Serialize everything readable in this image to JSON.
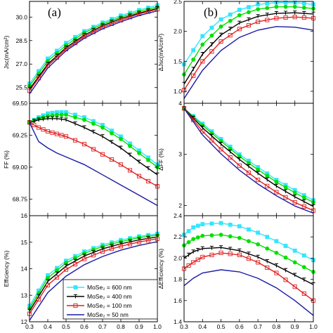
{
  "figure": {
    "left_tag": "(a)",
    "right_tag": "(b)"
  },
  "legend": {
    "entries": [
      {
        "label": "MoSe₂ = 600 nm",
        "color": "#33e6ff",
        "marker": "square-filled"
      },
      {
        "label": "MoSe₂ = 400 nm",
        "color": "#00e000",
        "marker": "circle-filled"
      },
      {
        "label": "MoSe₂ = 100 nm",
        "color": "#000000",
        "marker": "triangle-down"
      },
      {
        "label": "MoSe₂ = 50 nm",
        "color": "#e02020",
        "marker": "square-open"
      },
      {
        "label": "",
        "color": "#1a1aa6",
        "marker": "none"
      }
    ],
    "rows": [
      "MoSe₂ = 600 nm",
      "MoSe₂ = 400 nm",
      "MoSe₂ = 100 nm",
      "MoSe₂ = 50 nm"
    ]
  },
  "chart_data": [
    {
      "id": "jsc",
      "type": "line",
      "ylabel": "Jsc(mA/cm²)",
      "xlim": [
        0.3,
        1.0
      ],
      "ylim": [
        24.5,
        31.0
      ],
      "yticks": [
        25.5,
        27.0,
        28.5,
        30.0
      ],
      "ytick_labels": [
        "25.5",
        "27.0",
        "28.5",
        "30.0"
      ],
      "x": [
        0.3,
        0.4,
        0.5,
        0.6,
        0.7,
        0.8,
        0.9,
        1.0
      ],
      "series": [
        {
          "color": "#33e6ff",
          "marker": "square-filled",
          "values": [
            25.75,
            27.35,
            28.35,
            29.1,
            29.65,
            30.1,
            30.45,
            30.75
          ]
        },
        {
          "color": "#00e000",
          "marker": "circle-filled",
          "values": [
            25.6,
            27.2,
            28.2,
            29.0,
            29.55,
            30.0,
            30.35,
            30.65
          ]
        },
        {
          "color": "#000000",
          "marker": "triangle-down",
          "values": [
            25.4,
            27.0,
            28.05,
            28.85,
            29.45,
            29.9,
            30.25,
            30.55
          ]
        },
        {
          "color": "#e02020",
          "marker": "square-open",
          "values": [
            25.3,
            26.9,
            27.95,
            28.75,
            29.35,
            29.8,
            30.2,
            30.5
          ]
        },
        {
          "color": "#1a1aa6",
          "marker": "none",
          "values": [
            25.1,
            26.75,
            27.85,
            28.65,
            29.25,
            29.7,
            30.1,
            30.4
          ]
        }
      ]
    },
    {
      "id": "djsc",
      "type": "line",
      "ylabel": "ΔJsc(mA/cm²)",
      "xlim": [
        0.3,
        1.0
      ],
      "ylim": [
        0.8,
        2.5
      ],
      "yticks": [
        1.0,
        1.5,
        2.0,
        2.5
      ],
      "ytick_labels": [
        "1.0",
        "1.5",
        "2.0",
        "2.5"
      ],
      "x": [
        0.3,
        0.4,
        0.5,
        0.6,
        0.7,
        0.8,
        0.9,
        1.0
      ],
      "series": [
        {
          "color": "#33e6ff",
          "marker": "square-filled",
          "values": [
            1.45,
            1.92,
            2.2,
            2.36,
            2.45,
            2.48,
            2.48,
            2.45
          ]
        },
        {
          "color": "#00e000",
          "marker": "circle-filled",
          "values": [
            1.28,
            1.78,
            2.08,
            2.27,
            2.37,
            2.41,
            2.41,
            2.38
          ]
        },
        {
          "color": "#000000",
          "marker": "triangle-down",
          "values": [
            1.12,
            1.62,
            1.94,
            2.14,
            2.25,
            2.3,
            2.31,
            2.29
          ]
        },
        {
          "color": "#e02020",
          "marker": "square-open",
          "values": [
            1.02,
            1.5,
            1.83,
            2.04,
            2.16,
            2.22,
            2.24,
            2.22
          ]
        },
        {
          "color": "#1a1aa6",
          "marker": "none",
          "values": [
            0.88,
            1.35,
            1.68,
            1.9,
            2.02,
            2.08,
            2.07,
            2.02
          ]
        }
      ]
    },
    {
      "id": "ff",
      "type": "line",
      "ylabel": "FF (%)",
      "xlim": [
        0.3,
        1.0
      ],
      "ylim": [
        68.62,
        69.5
      ],
      "yticks": [
        68.75,
        69.0,
        69.25,
        69.5
      ],
      "ytick_labels": [
        "68.75",
        "69.00",
        "69.25",
        "69.50"
      ],
      "x": [
        0.3,
        0.35,
        0.4,
        0.45,
        0.5,
        0.6,
        0.7,
        0.8,
        0.9,
        1.0
      ],
      "series": [
        {
          "color": "#33e6ff",
          "marker": "square-filled",
          "values": [
            69.35,
            69.39,
            69.42,
            69.43,
            69.43,
            69.39,
            69.33,
            69.24,
            69.13,
            69.02
          ]
        },
        {
          "color": "#00e000",
          "marker": "circle-filled",
          "values": [
            69.35,
            69.38,
            69.4,
            69.41,
            69.41,
            69.37,
            69.31,
            69.22,
            69.11,
            69.0
          ]
        },
        {
          "color": "#000000",
          "marker": "triangle-down",
          "values": [
            69.35,
            69.37,
            69.38,
            69.38,
            69.37,
            69.31,
            69.24,
            69.15,
            69.04,
            68.94
          ]
        },
        {
          "color": "#e02020",
          "marker": "square-open",
          "values": [
            69.35,
            69.31,
            69.28,
            69.26,
            69.24,
            69.18,
            69.1,
            69.02,
            68.93,
            68.85
          ]
        },
        {
          "color": "#1a1aa6",
          "marker": "none",
          "values": [
            69.35,
            69.2,
            69.15,
            69.11,
            69.08,
            69.02,
            68.94,
            68.86,
            68.78,
            68.7
          ]
        }
      ]
    },
    {
      "id": "dff",
      "type": "line",
      "ylabel": "ΔFF (%)",
      "xlim": [
        0.3,
        1.0
      ],
      "ylim": [
        1.8,
        4.0
      ],
      "yticks": [
        2,
        3,
        4
      ],
      "ytick_labels": [
        "2",
        "3",
        "4"
      ],
      "x": [
        0.3,
        0.4,
        0.5,
        0.6,
        0.7,
        0.8,
        0.9,
        1.0
      ],
      "series": [
        {
          "color": "#33e6ff",
          "marker": "square-filled",
          "values": [
            3.9,
            3.6,
            3.3,
            3.0,
            2.75,
            2.5,
            2.3,
            2.1
          ]
        },
        {
          "color": "#00e000",
          "marker": "circle-filled",
          "values": [
            3.9,
            3.57,
            3.26,
            2.96,
            2.7,
            2.46,
            2.25,
            2.06
          ]
        },
        {
          "color": "#000000",
          "marker": "triangle-down",
          "values": [
            3.9,
            3.52,
            3.2,
            2.9,
            2.63,
            2.38,
            2.17,
            1.98
          ]
        },
        {
          "color": "#e02020",
          "marker": "square-open",
          "values": [
            3.9,
            3.45,
            3.1,
            2.78,
            2.5,
            2.26,
            2.06,
            1.9
          ]
        },
        {
          "color": "#1a1aa6",
          "marker": "none",
          "values": [
            3.9,
            3.38,
            3.01,
            2.69,
            2.42,
            2.19,
            1.99,
            1.85
          ]
        }
      ]
    },
    {
      "id": "eff",
      "type": "line",
      "ylabel": "Efficiency (%)",
      "xlabel_ticks": true,
      "xlim": [
        0.3,
        1.0
      ],
      "ylim": [
        12.0,
        16.0
      ],
      "yticks": [
        12,
        13,
        14,
        15,
        16
      ],
      "ytick_labels": [
        "12",
        "13",
        "14",
        "15",
        "16"
      ],
      "xticks": [
        0.3,
        0.4,
        0.5,
        0.6,
        0.7,
        0.8,
        0.9,
        1.0
      ],
      "xtick_labels": [
        "0.3",
        "0.4",
        "0.5",
        "0.6",
        "0.7",
        "0.8",
        "0.9",
        "1.0"
      ],
      "x": [
        0.3,
        0.4,
        0.5,
        0.6,
        0.7,
        0.8,
        0.9,
        1.0
      ],
      "series": [
        {
          "color": "#33e6ff",
          "marker": "square-filled",
          "values": [
            12.6,
            13.75,
            14.3,
            14.65,
            14.9,
            15.08,
            15.22,
            15.32
          ]
        },
        {
          "color": "#00e000",
          "marker": "circle-filled",
          "values": [
            12.5,
            13.65,
            14.22,
            14.58,
            14.84,
            15.02,
            15.17,
            15.27
          ]
        },
        {
          "color": "#000000",
          "marker": "triangle-down",
          "values": [
            12.4,
            13.52,
            14.1,
            14.48,
            14.75,
            14.94,
            15.09,
            15.2
          ]
        },
        {
          "color": "#e02020",
          "marker": "square-open",
          "values": [
            12.3,
            13.38,
            13.97,
            14.37,
            14.65,
            14.85,
            15.01,
            15.13
          ]
        },
        {
          "color": "#1a1aa6",
          "marker": "none",
          "values": [
            12.05,
            13.1,
            13.72,
            14.15,
            14.46,
            14.7,
            14.88,
            15.02
          ]
        }
      ]
    },
    {
      "id": "deff",
      "type": "line",
      "ylabel": "ΔEfficiency (%)",
      "xlabel_ticks": true,
      "xlim": [
        0.3,
        1.0
      ],
      "ylim": [
        1.4,
        2.4
      ],
      "yticks": [
        1.4,
        1.6,
        1.8,
        2.0,
        2.2,
        2.4
      ],
      "ytick_labels": [
        "1.4",
        "1.6",
        "1.8",
        "2.0",
        "2.2",
        "2.4"
      ],
      "xticks": [
        0.3,
        0.4,
        0.5,
        0.6,
        0.7,
        0.8,
        0.9,
        1.0
      ],
      "xtick_labels": [
        "0.3",
        "0.4",
        "0.5",
        "0.6",
        "0.7",
        "0.8",
        "0.9",
        "1.0"
      ],
      "x": [
        0.3,
        0.35,
        0.4,
        0.5,
        0.6,
        0.7,
        0.8,
        0.9,
        1.0
      ],
      "series": [
        {
          "color": "#33e6ff",
          "marker": "square-filled",
          "values": [
            2.22,
            2.29,
            2.32,
            2.33,
            2.3,
            2.24,
            2.16,
            2.07,
            1.98
          ]
        },
        {
          "color": "#00e000",
          "marker": "circle-filled",
          "values": [
            2.12,
            2.18,
            2.21,
            2.22,
            2.19,
            2.13,
            2.05,
            1.96,
            1.87
          ]
        },
        {
          "color": "#000000",
          "marker": "triangle-down",
          "values": [
            2.0,
            2.06,
            2.09,
            2.1,
            2.07,
            2.01,
            1.93,
            1.84,
            1.75
          ]
        },
        {
          "color": "#e02020",
          "marker": "square-open",
          "values": [
            1.9,
            1.96,
            2.01,
            2.05,
            2.03,
            1.96,
            1.86,
            1.73,
            1.6
          ]
        },
        {
          "color": "#1a1aa6",
          "marker": "none",
          "values": [
            1.74,
            1.81,
            1.86,
            1.89,
            1.87,
            1.81,
            1.72,
            1.6,
            1.46
          ]
        }
      ]
    }
  ]
}
